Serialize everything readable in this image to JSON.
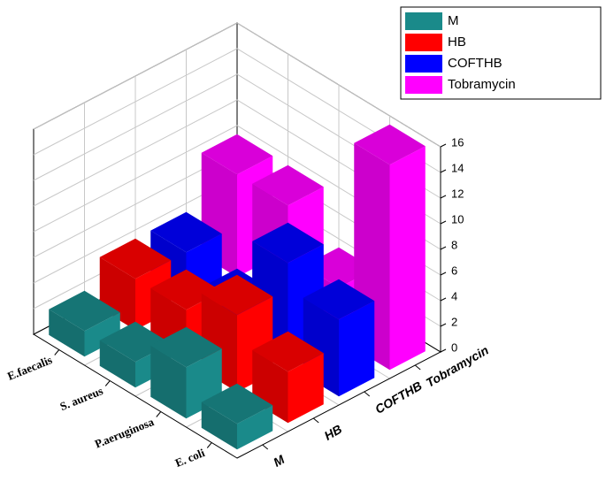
{
  "chart_data": {
    "type": "bar3d",
    "categories": [
      "E.faecalis",
      "S. aureus",
      "P.aeruginosa",
      "E. coli"
    ],
    "series": [
      {
        "name": "M",
        "color": "#1a8a8a",
        "values": [
          2,
          2,
          4,
          2
        ]
      },
      {
        "name": "HB",
        "color": "#ff0000",
        "values": [
          4,
          4,
          6,
          4
        ]
      },
      {
        "name": "COFTHB",
        "color": "#0000ff",
        "values": [
          4,
          2,
          8,
          6
        ]
      },
      {
        "name": "Tobramycin",
        "color": "#ff00ff",
        "values": [
          8,
          8,
          4,
          16
        ]
      }
    ],
    "ylim": [
      0,
      16
    ],
    "yticks": [
      0,
      2,
      4,
      6,
      8,
      10,
      12,
      14,
      16
    ],
    "grid": true
  }
}
